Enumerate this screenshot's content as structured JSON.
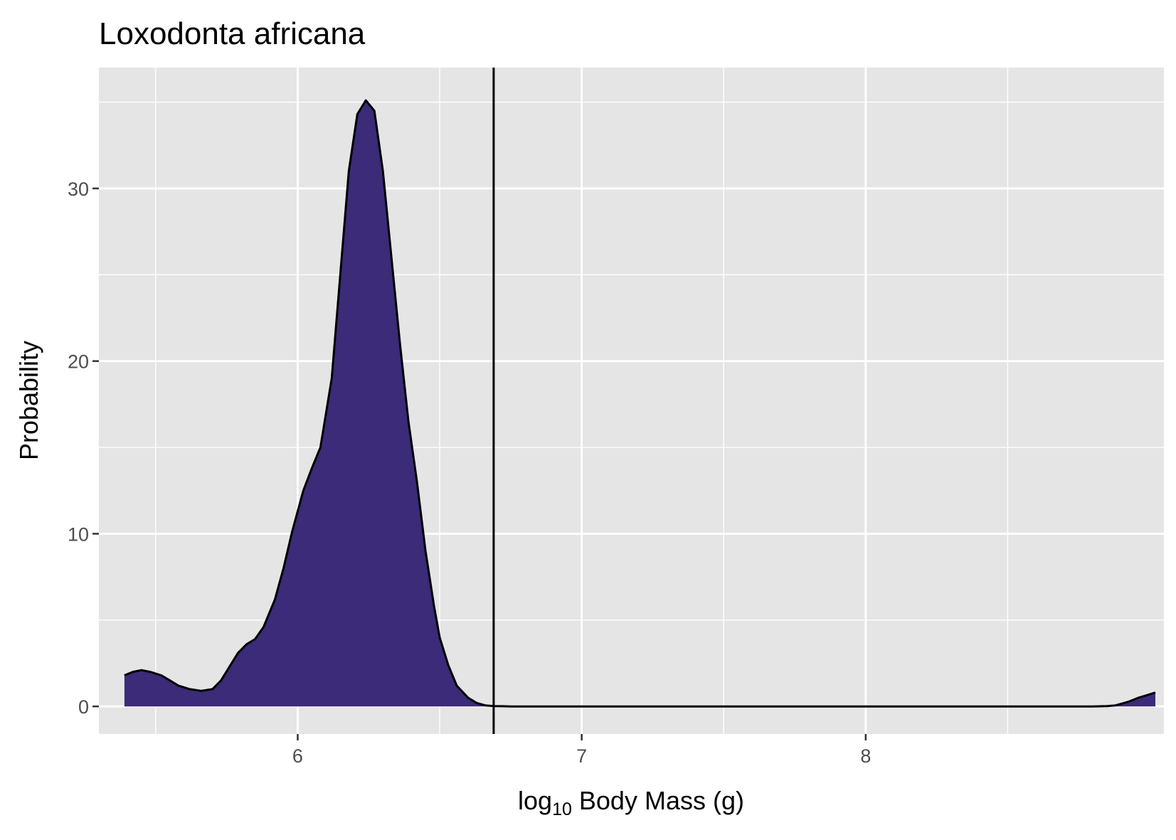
{
  "chart_data": {
    "type": "area",
    "title": "Loxodonta africana",
    "xlabel_main": "log",
    "xlabel_sub": "10",
    "xlabel_rest": " Body Mass (g)",
    "ylabel": "Probability",
    "xlim": [
      5.3,
      9.05
    ],
    "ylim": [
      -1.6,
      37.0
    ],
    "x_major_ticks": [
      6,
      7,
      8
    ],
    "x_tick_labels": [
      "6",
      "7",
      "8"
    ],
    "x_grid_minor": [
      5.5,
      6.5,
      7.5,
      8.5
    ],
    "y_major_ticks": [
      0,
      10,
      20,
      30
    ],
    "y_tick_labels": [
      "0",
      "10",
      "20",
      "30"
    ],
    "y_grid_minor": [
      5,
      15,
      25,
      35
    ],
    "fill_color": "#3b2b78",
    "line_color": "#000000",
    "panel_color": "#e5e5e5",
    "grid_color": "#ffffff",
    "vline_x": 6.69,
    "series": [
      {
        "x": [
          5.39,
          5.42,
          5.45,
          5.48,
          5.52,
          5.55,
          5.58,
          5.62,
          5.66,
          5.7,
          5.73,
          5.76,
          5.79,
          5.82,
          5.85,
          5.88,
          5.92,
          5.95,
          5.98,
          6.02,
          6.05,
          6.08,
          6.12,
          6.15,
          6.18,
          6.21,
          6.24,
          6.27,
          6.3,
          6.33,
          6.36,
          6.39,
          6.42,
          6.45,
          6.48,
          6.5,
          6.53,
          6.56,
          6.6,
          6.63,
          6.66,
          6.69,
          6.72,
          6.75,
          6.78,
          6.8,
          6.82,
          6.85,
          6.88,
          6.92,
          6.96,
          7.0,
          7.3,
          7.6,
          7.9,
          8.2,
          8.5,
          8.8,
          8.85,
          8.88,
          8.9,
          8.93,
          8.96,
          9.0,
          9.02
        ],
        "y": [
          1.8,
          2.0,
          2.1,
          2.0,
          1.8,
          1.5,
          1.2,
          1.0,
          0.9,
          1.0,
          1.5,
          2.3,
          3.1,
          3.6,
          3.9,
          4.6,
          6.2,
          8.0,
          10.1,
          12.5,
          13.8,
          15.0,
          19.0,
          25.0,
          31.0,
          34.3,
          35.1,
          34.5,
          31.0,
          26.0,
          21.0,
          16.5,
          13.0,
          9.0,
          5.8,
          4.0,
          2.4,
          1.2,
          0.5,
          0.2,
          0.06,
          0.02,
          0.01,
          0.0,
          0.0,
          0.0,
          0.0,
          0.0,
          0.0,
          0.0,
          0.0,
          0.0,
          0.0,
          0.0,
          0.0,
          0.0,
          0.0,
          0.0,
          0.02,
          0.06,
          0.15,
          0.3,
          0.5,
          0.7,
          0.8
        ]
      }
    ]
  }
}
